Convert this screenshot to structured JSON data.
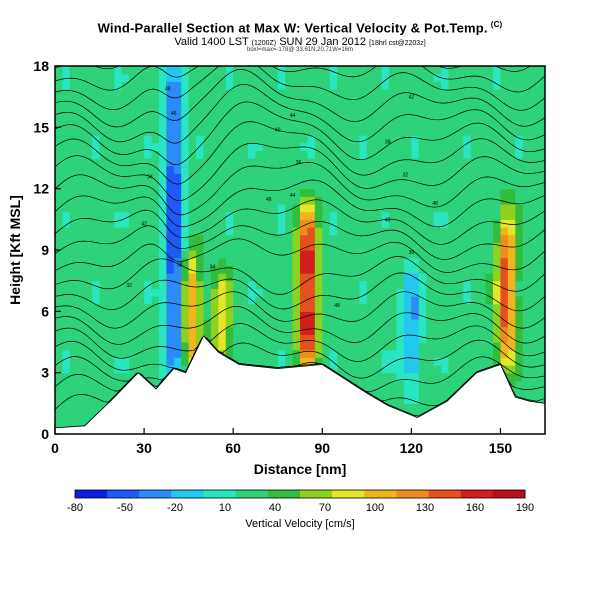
{
  "header": {
    "title": "Wind-Parallel Section at Max W: Vertical Velocity & Pot.Temp.",
    "title_suffix": "(C)",
    "subtitle": "Valid 1400 LST",
    "subtitle_small": "(1200Z)",
    "subtitle_date": "SUN 29 Jan 2012",
    "subtitle_small2": "[18hrl cst@2203z]",
    "tiny_line": "boxl=max=-178@ 33.61N,20.71W=16m"
  },
  "chart_data": {
    "type": "heatmap",
    "xlabel": "Distance [nm]",
    "ylabel": "Height [Kft MSL]",
    "xlim": [
      0,
      165
    ],
    "ylim": [
      0,
      18
    ],
    "xticks": [
      0,
      30,
      60,
      90,
      120,
      150
    ],
    "yticks": [
      0,
      3,
      6,
      9,
      12,
      15,
      18
    ],
    "colorbar": {
      "label": "Vertical Velocity [cm/s]",
      "tick_labels": [
        "-80",
        "-50",
        "-20",
        "10",
        "40",
        "70",
        "100",
        "130",
        "160",
        "190"
      ],
      "colors": [
        "#0a1ee6",
        "#1e5af5",
        "#2a8cf5",
        "#22c8f0",
        "#28e6c0",
        "#2ed27a",
        "#32be3c",
        "#8cd21e",
        "#e6e628",
        "#f0b41e",
        "#f08c1e",
        "#e6501e",
        "#d21e1e",
        "#b4101e"
      ]
    },
    "contour_labels": [
      "48",
      "46",
      "44",
      "42",
      "40",
      "38",
      "36",
      "34",
      "32"
    ],
    "features": [
      {
        "x": 40,
        "ymin": 2.5,
        "ymax": 18,
        "w": -60
      },
      {
        "x": 46,
        "ymin": 3,
        "ymax": 9,
        "w": 110
      },
      {
        "x": 56,
        "ymin": 3,
        "ymax": 8,
        "w": 85
      },
      {
        "x": 85,
        "ymin": 3,
        "ymax": 11,
        "w": 180
      },
      {
        "x": 120,
        "ymin": 2,
        "ymax": 8,
        "w": -25
      },
      {
        "x": 152,
        "ymin": 3,
        "ymax": 11,
        "w": 140
      }
    ],
    "terrain": [
      {
        "x": 0,
        "h": 0.3
      },
      {
        "x": 10,
        "h": 0.4
      },
      {
        "x": 20,
        "h": 1.8
      },
      {
        "x": 28,
        "h": 3.0
      },
      {
        "x": 34,
        "h": 2.2
      },
      {
        "x": 40,
        "h": 3.2
      },
      {
        "x": 44,
        "h": 3.0
      },
      {
        "x": 50,
        "h": 4.8
      },
      {
        "x": 55,
        "h": 4.0
      },
      {
        "x": 62,
        "h": 3.4
      },
      {
        "x": 75,
        "h": 3.2
      },
      {
        "x": 90,
        "h": 3.4
      },
      {
        "x": 105,
        "h": 2.0
      },
      {
        "x": 112,
        "h": 1.4
      },
      {
        "x": 122,
        "h": 0.8
      },
      {
        "x": 132,
        "h": 1.6
      },
      {
        "x": 142,
        "h": 3.0
      },
      {
        "x": 150,
        "h": 3.4
      },
      {
        "x": 155,
        "h": 1.8
      },
      {
        "x": 160,
        "h": 1.6
      },
      {
        "x": 165,
        "h": 1.5
      }
    ]
  }
}
